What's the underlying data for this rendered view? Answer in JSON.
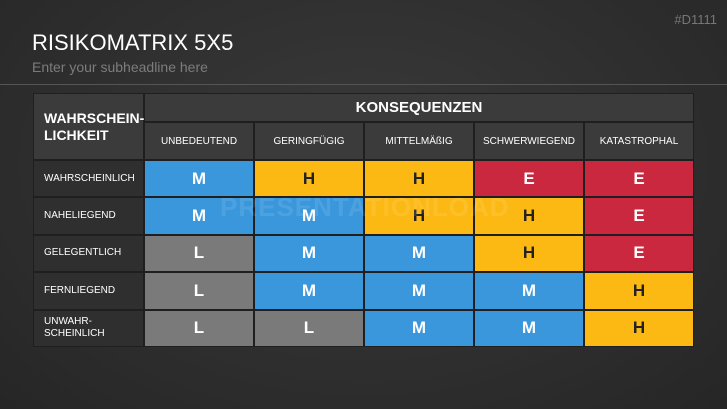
{
  "header": {
    "title": "RISIKOMATRIX 5X5",
    "subtitle": "Enter your subheadline here",
    "code": "#D1111"
  },
  "watermark": "PRESENTATIONLOAD",
  "table": {
    "corner": [
      "WAHRSCHEIN-",
      "LICHKEIT"
    ],
    "group_header": "KONSEQUENZEN",
    "columns": [
      "UNBEDEUTEND",
      "GERINGFÜGIG",
      "MITTELMÄßIG",
      "SCHWERWIEGEND",
      "KATASTROPHAL"
    ],
    "rows": [
      {
        "label": [
          "WAHRSCHEINLICH"
        ],
        "cells": [
          {
            "text": "M",
            "color": "#3a97dc"
          },
          {
            "text": "H",
            "color": "#fdb913"
          },
          {
            "text": "H",
            "color": "#fdb913"
          },
          {
            "text": "E",
            "color": "#c9283e"
          },
          {
            "text": "E",
            "color": "#c9283e"
          }
        ]
      },
      {
        "label": [
          "NAHELIEGEND"
        ],
        "cells": [
          {
            "text": "M",
            "color": "#3a97dc"
          },
          {
            "text": "M",
            "color": "#3a97dc"
          },
          {
            "text": "H",
            "color": "#fdb913"
          },
          {
            "text": "H",
            "color": "#fdb913"
          },
          {
            "text": "E",
            "color": "#c9283e"
          }
        ]
      },
      {
        "label": [
          "GELEGENTLICH"
        ],
        "cells": [
          {
            "text": "L",
            "color": "#7a7a7a"
          },
          {
            "text": "M",
            "color": "#3a97dc"
          },
          {
            "text": "M",
            "color": "#3a97dc"
          },
          {
            "text": "H",
            "color": "#fdb913"
          },
          {
            "text": "E",
            "color": "#c9283e"
          }
        ]
      },
      {
        "label": [
          "FERNLIEGEND"
        ],
        "cells": [
          {
            "text": "L",
            "color": "#7a7a7a"
          },
          {
            "text": "M",
            "color": "#3a97dc"
          },
          {
            "text": "M",
            "color": "#3a97dc"
          },
          {
            "text": "M",
            "color": "#3a97dc"
          },
          {
            "text": "H",
            "color": "#fdb913"
          }
        ]
      },
      {
        "label": [
          "UNWAHR-",
          "SCHEINLICH"
        ],
        "cells": [
          {
            "text": "L",
            "color": "#7a7a7a"
          },
          {
            "text": "L",
            "color": "#7a7a7a"
          },
          {
            "text": "M",
            "color": "#3a97dc"
          },
          {
            "text": "M",
            "color": "#3a97dc"
          },
          {
            "text": "H",
            "color": "#fdb913"
          }
        ]
      }
    ]
  }
}
